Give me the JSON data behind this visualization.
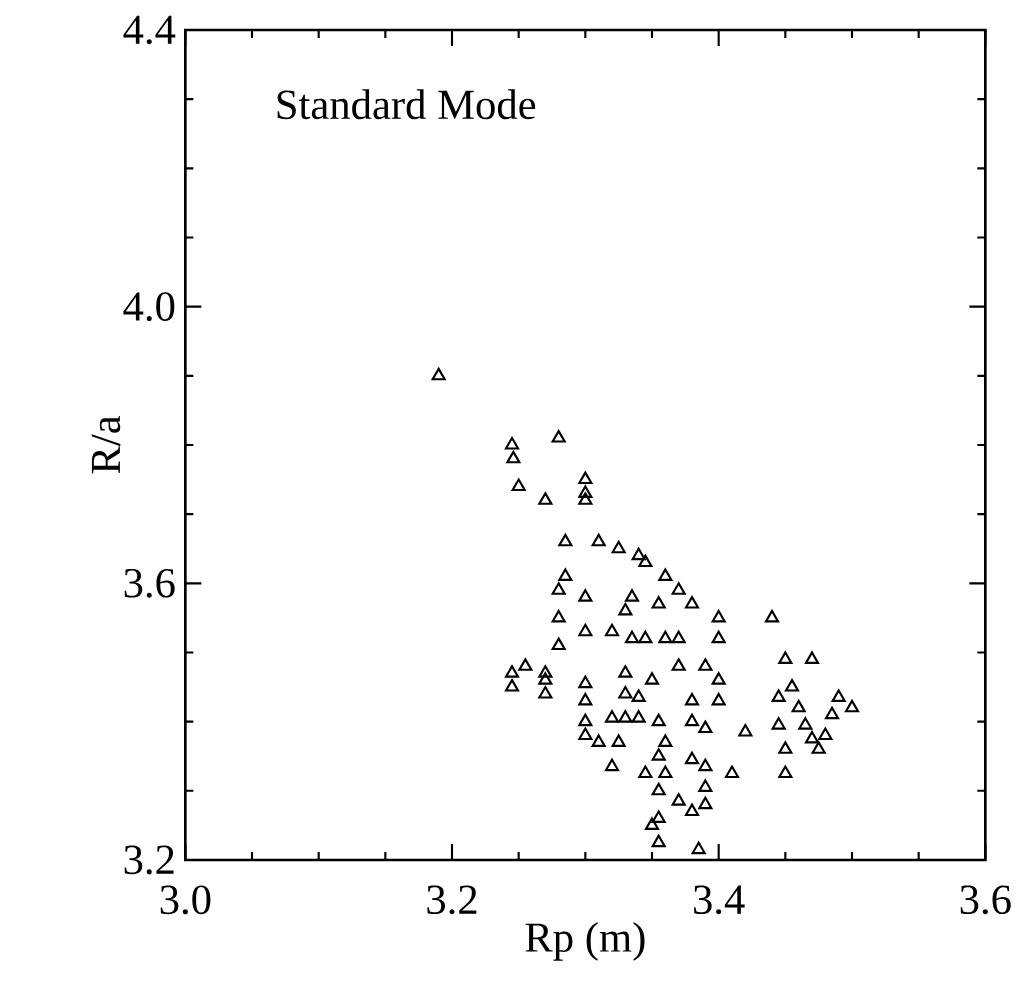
{
  "chart_data": {
    "type": "scatter",
    "xlabel": "Rp (m)",
    "ylabel": "R/a",
    "annotations": [
      "Standard Mode"
    ],
    "xlim": [
      3.0,
      3.6
    ],
    "ylim": [
      3.2,
      4.4
    ],
    "xticks": [
      {
        "value": 3.0,
        "label": "3.0"
      },
      3.2,
      3.4,
      3.6
    ],
    "yticks": [
      3.2,
      3.6,
      {
        "value": 4.0,
        "label": "4.0"
      },
      4.4
    ],
    "grid": false,
    "marker": "triangle",
    "series": [
      {
        "color": "#000000",
        "x": [
          3.19,
          3.245,
          3.246,
          3.25,
          3.28,
          3.3,
          3.3,
          3.3,
          3.27,
          3.285,
          3.31,
          3.325,
          3.34,
          3.345,
          3.36,
          3.285,
          3.28,
          3.3,
          3.37,
          3.38,
          3.355,
          3.33,
          3.335,
          3.28,
          3.3,
          3.32,
          3.335,
          3.345,
          3.28,
          3.36,
          3.37,
          3.4,
          3.4,
          3.44,
          3.45,
          3.47,
          3.255,
          3.245,
          3.245,
          3.27,
          3.27,
          3.27,
          3.3,
          3.3,
          3.3,
          3.3,
          3.33,
          3.33,
          3.34,
          3.35,
          3.32,
          3.33,
          3.34,
          3.355,
          3.31,
          3.325,
          3.32,
          3.345,
          3.37,
          3.38,
          3.38,
          3.39,
          3.4,
          3.4,
          3.39,
          3.42,
          3.41,
          3.36,
          3.355,
          3.38,
          3.39,
          3.36,
          3.39,
          3.355,
          3.37,
          3.38,
          3.39,
          3.355,
          3.35,
          3.355,
          3.385,
          3.445,
          3.455,
          3.46,
          3.445,
          3.45,
          3.45,
          3.465,
          3.47,
          3.48,
          3.485,
          3.49,
          3.5,
          3.475
        ],
        "values": [
          3.9,
          3.8,
          3.78,
          3.74,
          3.81,
          3.75,
          3.73,
          3.72,
          3.72,
          3.66,
          3.66,
          3.65,
          3.64,
          3.63,
          3.61,
          3.61,
          3.59,
          3.58,
          3.59,
          3.57,
          3.57,
          3.56,
          3.58,
          3.55,
          3.53,
          3.53,
          3.52,
          3.52,
          3.51,
          3.52,
          3.52,
          3.55,
          3.52,
          3.55,
          3.49,
          3.49,
          3.48,
          3.47,
          3.45,
          3.47,
          3.46,
          3.44,
          3.455,
          3.43,
          3.4,
          3.38,
          3.47,
          3.44,
          3.435,
          3.46,
          3.405,
          3.405,
          3.405,
          3.4,
          3.37,
          3.37,
          3.335,
          3.325,
          3.48,
          3.43,
          3.4,
          3.48,
          3.46,
          3.43,
          3.39,
          3.385,
          3.325,
          3.37,
          3.35,
          3.345,
          3.335,
          3.325,
          3.305,
          3.3,
          3.285,
          3.27,
          3.28,
          3.26,
          3.25,
          3.225,
          3.215,
          3.435,
          3.45,
          3.42,
          3.395,
          3.36,
          3.325,
          3.395,
          3.375,
          3.38,
          3.41,
          3.435,
          3.42,
          3.36
        ]
      }
    ]
  }
}
